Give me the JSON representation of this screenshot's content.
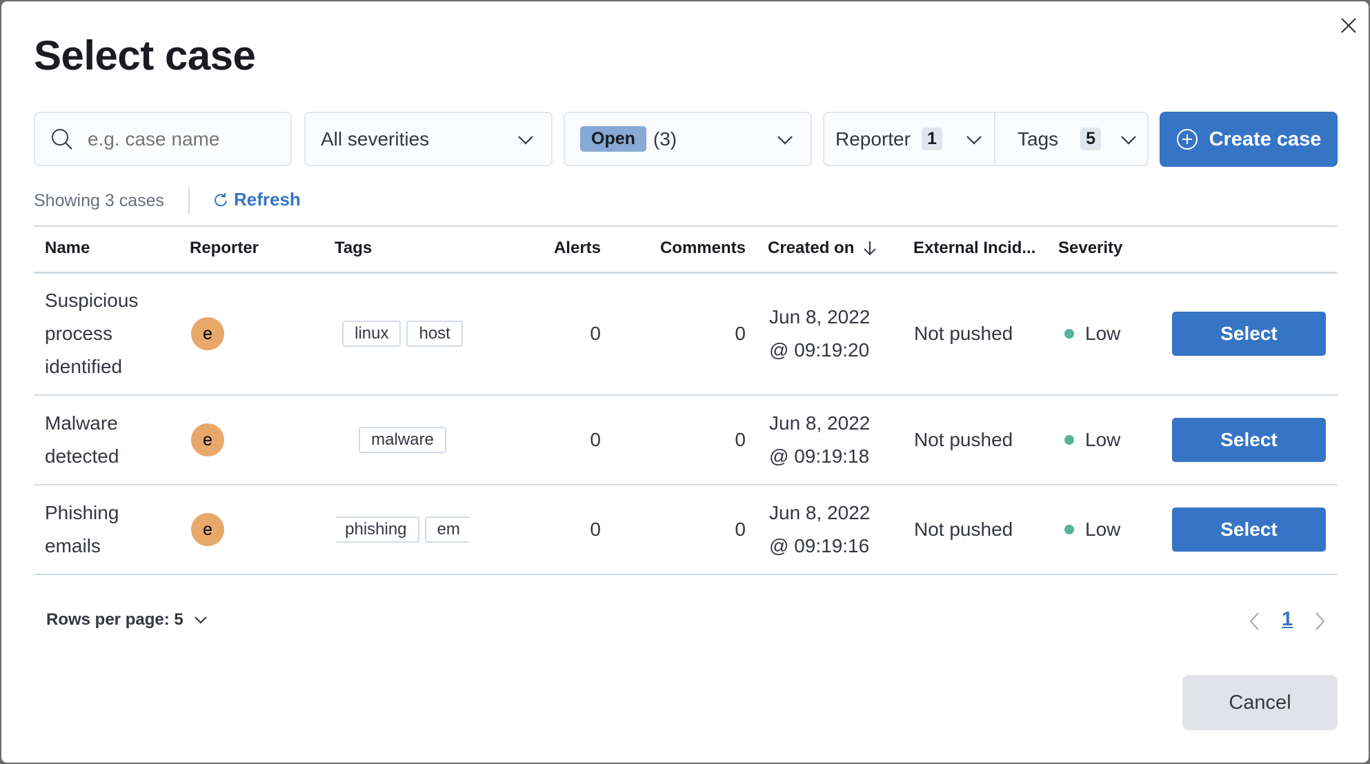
{
  "modal": {
    "title": "Select case",
    "close_icon": "close-icon"
  },
  "filters": {
    "search_placeholder": "e.g. case name",
    "search_value": "",
    "severity": "All severities",
    "status": "Open",
    "status_count": "(3)",
    "reporter_label": "Reporter",
    "reporter_count": "1",
    "tags_label": "Tags",
    "tags_count": "5",
    "create_label": "Create case"
  },
  "meta": {
    "showing": "Showing 3 cases",
    "refresh": "Refresh"
  },
  "table": {
    "columns": [
      "Name",
      "Reporter",
      "Tags",
      "Alerts",
      "Comments",
      "Created on",
      "External Incid...",
      "Severity"
    ],
    "sorted_column": "Created on",
    "sort_direction": "descending",
    "rows": [
      {
        "name": "Suspicious process identified",
        "reporter": "e",
        "tags": [
          "linux",
          "host"
        ],
        "alerts": "0",
        "comments": "0",
        "date": "Jun 8, 2022",
        "time": "@ 09:19:20",
        "external": "Not pushed",
        "severity": "Low",
        "action": "Select"
      },
      {
        "name": "Malware detected",
        "reporter": "e",
        "tags": [
          "malware"
        ],
        "alerts": "0",
        "comments": "0",
        "date": "Jun 8, 2022",
        "time": "@ 09:19:18",
        "external": "Not pushed",
        "severity": "Low",
        "action": "Select"
      },
      {
        "name": "Phishing emails",
        "reporter": "e",
        "tags": [
          "phishing",
          "em"
        ],
        "alerts": "0",
        "comments": "0",
        "date": "Jun 8, 2022",
        "time": "@ 09:19:16",
        "external": "Not pushed",
        "severity": "Low",
        "action": "Select"
      }
    ]
  },
  "footer": {
    "rows_per_page": "Rows per page: 5",
    "current_page": "1",
    "cancel": "Cancel"
  },
  "colors": {
    "primary": "#3674c6",
    "status_badge": "#86a9d6",
    "avatar": "#e8a869",
    "severity_low": "#54b399"
  }
}
